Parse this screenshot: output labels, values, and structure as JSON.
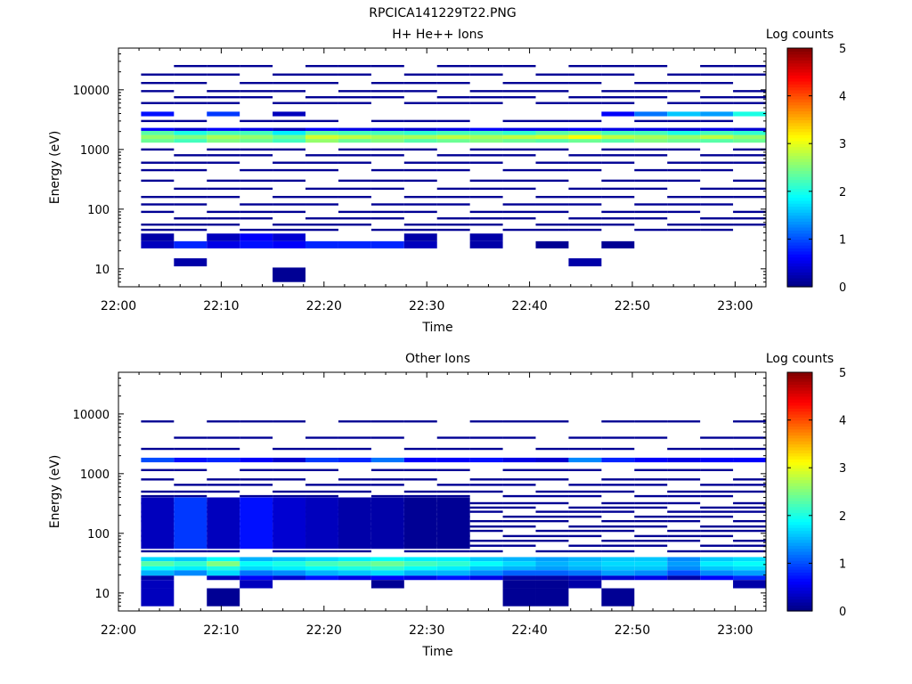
{
  "page_title": "RPCICA141229T22.PNG",
  "chart_data": [
    {
      "type": "heatmap",
      "title": "H+ He++ Ions",
      "xlabel": "Time",
      "ylabel": "Energy (eV)",
      "y_scale": "log",
      "ylim": [
        5,
        50000
      ],
      "xlim": [
        "22:00",
        "23:03"
      ],
      "x_tick_labels": [
        "22:00",
        "22:10",
        "22:20",
        "22:30",
        "22:40",
        "22:50",
        "23:00"
      ],
      "y_tick_labels": [
        "10",
        "100",
        "1000",
        "10000"
      ],
      "colorbar": {
        "label": "Log counts",
        "range": [
          0,
          5
        ],
        "tick_labels": [
          "0",
          "1",
          "2",
          "3",
          "4",
          "5"
        ]
      },
      "time_bin_starts_min": [
        2.2,
        5.4,
        8.6,
        11.8,
        15.0,
        18.2,
        21.4,
        24.6,
        27.8,
        31.0,
        34.2,
        37.4,
        40.6,
        43.8,
        47.0,
        50.2,
        53.4,
        56.6,
        59.8
      ],
      "time_bin_width_min": 3.2,
      "bands": [
        {
          "energy_eV": [
            1300,
            1500
          ],
          "values": [
            2.4,
            2.2,
            2.5,
            2.4,
            2.2,
            2.6,
            2.4,
            2.5,
            2.3,
            2.4,
            2.5,
            2.4,
            2.3,
            2.4,
            2.3,
            2.5,
            2.4,
            2.3,
            2.4
          ]
        },
        {
          "energy_eV": [
            1500,
            1750
          ],
          "values": [
            2.6,
            2.5,
            2.7,
            2.6,
            2.4,
            2.9,
            2.8,
            2.7,
            2.7,
            2.8,
            2.7,
            2.8,
            2.9,
            3.1,
            2.8,
            2.7,
            2.6,
            2.8,
            2.6
          ]
        },
        {
          "energy_eV": [
            1750,
            2050
          ],
          "values": [
            2.3,
            2.0,
            2.2,
            2.2,
            1.8,
            2.3,
            2.2,
            2.2,
            2.1,
            2.2,
            2.2,
            2.1,
            2.3,
            2.4,
            2.2,
            2.2,
            2.0,
            2.2,
            2.1
          ]
        },
        {
          "energy_eV": [
            2050,
            2300
          ],
          "values": [
            0.6,
            0.4,
            0.6,
            0.5,
            0.3,
            0.6,
            0.5,
            0.5,
            0.4,
            0.5,
            0.6,
            0.5,
            0.5,
            0.6,
            0.5,
            0.5,
            0.4,
            0.5,
            0.4
          ]
        },
        {
          "energy_eV": [
            3600,
            4300
          ],
          "values": [
            0.7,
            null,
            0.9,
            null,
            0.3,
            null,
            null,
            null,
            null,
            null,
            null,
            null,
            null,
            null,
            0.6,
            1.2,
            1.6,
            1.4,
            2.0
          ]
        },
        {
          "energy_eV": [
            22,
            29
          ],
          "values": [
            0.3,
            0.8,
            0.5,
            0.7,
            0.6,
            0.8,
            0.8,
            0.8,
            0.3,
            null,
            0.2,
            null,
            0.1,
            null,
            0.1,
            null,
            null,
            null,
            null
          ]
        },
        {
          "energy_eV": [
            29,
            39
          ],
          "values": [
            0.2,
            null,
            0.3,
            0.6,
            0.4,
            null,
            null,
            null,
            0.2,
            null,
            0.2,
            null,
            null,
            null,
            null,
            null,
            null,
            null,
            null
          ]
        },
        {
          "energy_eV": [
            11,
            15
          ],
          "values": [
            null,
            0.2,
            null,
            null,
            null,
            null,
            null,
            null,
            null,
            null,
            null,
            null,
            null,
            0.2,
            null,
            null,
            null,
            null,
            null
          ]
        },
        {
          "energy_eV": [
            6,
            10.5
          ],
          "values": [
            null,
            null,
            null,
            null,
            0.1,
            null,
            null,
            null,
            null,
            null,
            null,
            null,
            null,
            null,
            null,
            null,
            null,
            null,
            null
          ]
        }
      ],
      "sparse_counts_value": 0.05,
      "sparse_energy_levels_eV": [
        25000,
        18000,
        13000,
        9500,
        7500,
        6000,
        3000,
        1000,
        800,
        600,
        450,
        300,
        220,
        160,
        120,
        90,
        70,
        55,
        45
      ]
    },
    {
      "type": "heatmap",
      "title": "Other Ions",
      "xlabel": "Time",
      "ylabel": "Energy (eV)",
      "y_scale": "log",
      "ylim": [
        5,
        50000
      ],
      "xlim": [
        "22:00",
        "23:03"
      ],
      "x_tick_labels": [
        "22:00",
        "22:10",
        "22:20",
        "22:30",
        "22:40",
        "22:50",
        "23:00"
      ],
      "y_tick_labels": [
        "10",
        "100",
        "1000",
        "10000"
      ],
      "colorbar": {
        "label": "Log counts",
        "range": [
          0,
          5
        ],
        "tick_labels": [
          "0",
          "1",
          "2",
          "3",
          "4",
          "5"
        ]
      },
      "time_bin_starts_min": [
        2.2,
        5.4,
        8.6,
        11.8,
        15.0,
        18.2,
        21.4,
        24.6,
        27.8,
        31.0,
        34.2,
        37.4,
        40.6,
        43.8,
        47.0,
        50.2,
        53.4,
        56.6,
        59.8
      ],
      "time_bin_width_min": 3.2,
      "bands": [
        {
          "energy_eV": [
            1550,
            1850
          ],
          "values": [
            1.0,
            0.7,
            0.8,
            0.6,
            0.4,
            0.9,
            0.8,
            1.2,
            0.6,
            0.6,
            0.7,
            0.5,
            0.4,
            1.3,
            0.8,
            0.6,
            0.5,
            0.6,
            0.6
          ]
        },
        {
          "energy_eV": [
            34,
            40
          ],
          "values": [
            1.7,
            1.6,
            1.9,
            1.5,
            1.6,
            1.7,
            1.8,
            1.9,
            1.8,
            1.8,
            1.6,
            1.5,
            1.4,
            1.5,
            1.6,
            1.6,
            1.3,
            1.6,
            1.7
          ]
        },
        {
          "energy_eV": [
            28,
            34
          ],
          "values": [
            2.3,
            2.1,
            2.5,
            1.9,
            2.0,
            2.2,
            2.3,
            2.4,
            2.2,
            2.1,
            1.9,
            1.7,
            1.5,
            1.6,
            1.7,
            1.7,
            1.4,
            1.8,
            1.9
          ]
        },
        {
          "energy_eV": [
            24,
            28
          ],
          "values": [
            1.9,
            1.8,
            2.0,
            1.7,
            1.8,
            1.9,
            2.0,
            2.1,
            1.9,
            1.8,
            1.6,
            1.5,
            1.4,
            1.5,
            1.6,
            1.6,
            1.3,
            1.6,
            1.7
          ]
        },
        {
          "energy_eV": [
            19.5,
            24
          ],
          "values": [
            1.5,
            1.3,
            1.7,
            1.2,
            1.3,
            1.5,
            1.6,
            1.7,
            1.5,
            1.5,
            1.3,
            1.1,
            1.1,
            1.2,
            1.4,
            1.3,
            1.0,
            1.3,
            1.4
          ]
        },
        {
          "energy_eV": [
            16.5,
            19.5
          ],
          "values": [
            0.2,
            null,
            0.3,
            0.6,
            0.4,
            0.7,
            0.5,
            0.6,
            0.5,
            0.7,
            0.5,
            0.2,
            0.2,
            0.3,
            0.4,
            0.5,
            0.2,
            0.6,
            0.8
          ]
        },
        {
          "energy_eV": [
            12,
            16.5
          ],
          "values": [
            0.3,
            null,
            null,
            0.3,
            null,
            null,
            null,
            0.1,
            null,
            null,
            null,
            0.1,
            0.1,
            0.2,
            null,
            null,
            null,
            null,
            0.2
          ]
        },
        {
          "energy_eV": [
            6,
            12
          ],
          "values": [
            0.3,
            null,
            0.1,
            null,
            null,
            null,
            null,
            null,
            null,
            null,
            null,
            0.1,
            0.1,
            null,
            0.1,
            null,
            null,
            null,
            null
          ]
        },
        {
          "energy_eV": [
            55,
            400
          ],
          "values": [
            0.3,
            0.9,
            0.3,
            0.7,
            0.4,
            0.3,
            0.2,
            0.2,
            0.1,
            0.1,
            null,
            null,
            null,
            null,
            null,
            null,
            null,
            null,
            null
          ]
        }
      ],
      "sparse_counts_value": 0.05,
      "sparse_energy_levels_eV": [
        7500,
        4000,
        2600,
        1150,
        800,
        650,
        500,
        420,
        320,
        270,
        230,
        190,
        160,
        130,
        110,
        90,
        75,
        62,
        50
      ]
    }
  ]
}
